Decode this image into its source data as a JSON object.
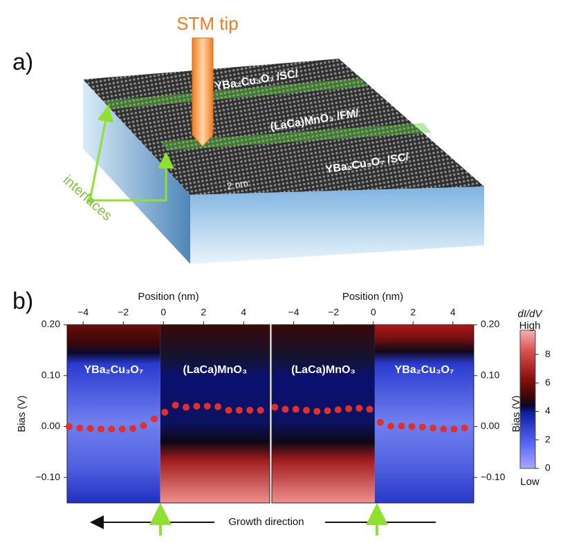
{
  "panel_a": {
    "label": "a)",
    "tip_label": "STM tip",
    "layers": [
      "YBa₂Cu₃O₇ /SC/",
      "(LaCa)MnO₃ /FM/",
      "YBa₂Cu₃O₇ /SC/"
    ],
    "scale_bar": "2 nm",
    "interfaces_label": "interfaces"
  },
  "panel_b_label": "b)",
  "growth_label": "Growth direction",
  "chart_data": [
    {
      "type": "scatter",
      "x_label": "Position (nm)",
      "y_label": "Bias (V)",
      "y_axis_side": "left",
      "regions": [
        "YBa₂Cu₃O₇",
        "(LaCa)MnO₃"
      ],
      "xlim": [
        -4.8,
        5.3
      ],
      "xticks": [
        {
          "value": -4,
          "label": "−4"
        },
        {
          "value": -2,
          "label": "−2"
        },
        0,
        2,
        4
      ],
      "ylim": [
        -0.15,
        0.2
      ],
      "yticks": [
        {
          "value": -0.1,
          "label": "−0.10"
        },
        {
          "value": 0,
          "label": "0.00"
        },
        {
          "value": 0.1,
          "label": "0.10"
        },
        {
          "value": 0.2,
          "label": "0.20"
        }
      ],
      "color": "#e0302a",
      "x": [
        -4.7,
        -4.17,
        -3.64,
        -3.11,
        -2.58,
        -2.05,
        -1.52,
        -0.99,
        -0.46,
        0.07,
        0.6,
        1.13,
        1.66,
        2.19,
        2.72,
        3.25,
        3.78,
        4.31,
        4.84
      ],
      "values": [
        0.0,
        -0.003,
        -0.004,
        -0.005,
        -0.005,
        -0.005,
        -0.004,
        0.002,
        0.015,
        0.028,
        0.042,
        0.038,
        0.04,
        0.04,
        0.039,
        0.032,
        0.032,
        0.032,
        0.032
      ]
    },
    {
      "type": "scatter",
      "x_label": "Position (nm)",
      "y_label": "Bias (V)",
      "y_axis_side": "right",
      "regions": [
        "(LaCa)MnO₃",
        "YBa₂Cu₃O₇"
      ],
      "xlim": [
        -5.1,
        5.05
      ],
      "xticks": [
        {
          "value": -4,
          "label": "−4"
        },
        {
          "value": -2,
          "label": "−2"
        },
        0,
        2,
        4
      ],
      "ylim": [
        -0.15,
        0.2
      ],
      "yticks": [
        {
          "value": -0.1,
          "label": "−0.10"
        },
        {
          "value": 0,
          "label": "0.00"
        },
        {
          "value": 0.1,
          "label": "0.10"
        },
        {
          "value": 0.2,
          "label": "0.20"
        }
      ],
      "color": "#e0302a",
      "x": [
        -4.95,
        -4.42,
        -3.89,
        -3.36,
        -2.83,
        -2.3,
        -1.77,
        -1.24,
        -0.71,
        -0.18,
        0.35,
        0.88,
        1.41,
        1.94,
        2.47,
        3.0,
        3.53,
        4.06,
        4.59
      ],
      "values": [
        0.038,
        0.034,
        0.034,
        0.032,
        0.03,
        0.031,
        0.033,
        0.035,
        0.036,
        0.034,
        0.008,
        0.001,
        0.001,
        0.0,
        -0.001,
        -0.003,
        -0.005,
        -0.005,
        -0.003
      ]
    }
  ],
  "colorbar": {
    "title": "dI/dV",
    "high_label": "High",
    "low_label": "Low",
    "ylim": [
      0,
      9.7
    ],
    "yticks": [
      0,
      2,
      4,
      6,
      8
    ]
  }
}
